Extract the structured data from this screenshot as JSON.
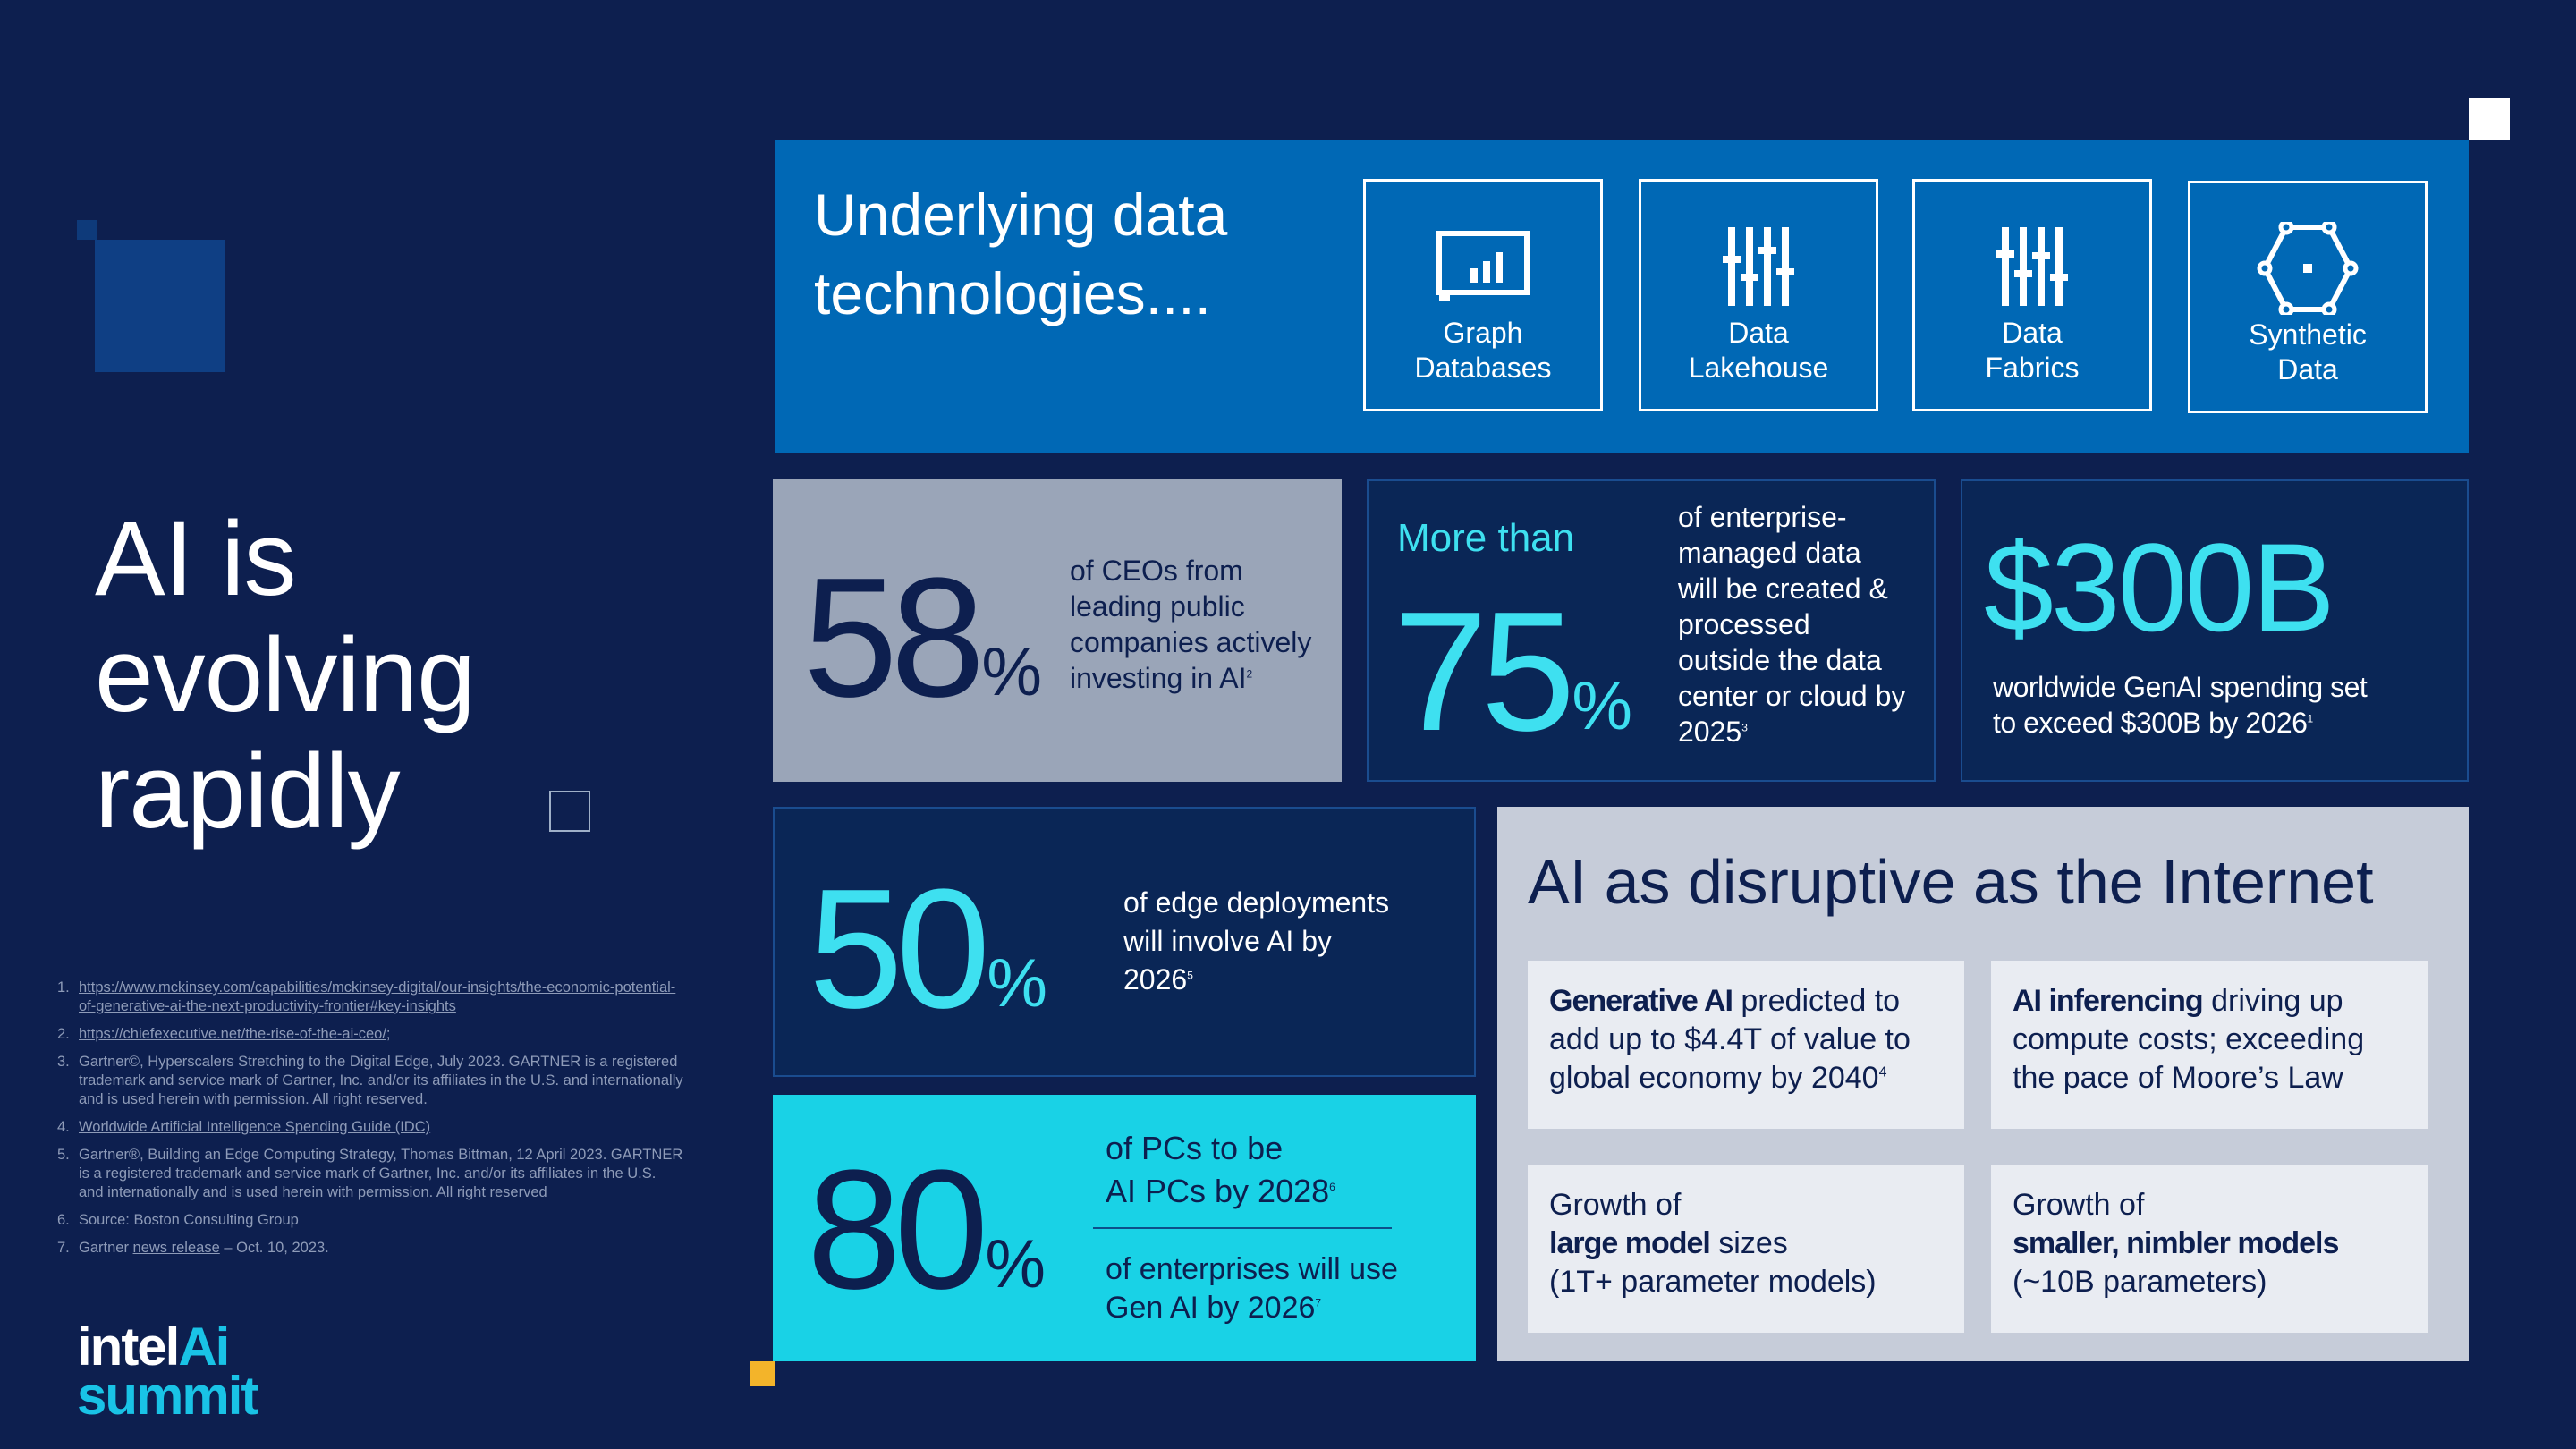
{
  "title": {
    "line1": "AI is",
    "line2": "evolving",
    "line3": "rapidly"
  },
  "tech": {
    "title_line1": "Underlying data",
    "title_line2": "technologies....",
    "cards": [
      {
        "label1": "Graph",
        "label2": "Databases",
        "icon": "graph-database-icon"
      },
      {
        "label1": "Data",
        "label2": "Lakehouse",
        "icon": "data-lakehouse-icon"
      },
      {
        "label1": "Data",
        "label2": "Fabrics",
        "icon": "data-fabrics-icon"
      },
      {
        "label1": "Synthetic",
        "label2": "Data",
        "icon": "synthetic-data-icon"
      }
    ]
  },
  "stats": {
    "ceo": {
      "value": "58",
      "unit": "%",
      "text1": "of CEOs from",
      "text2": "leading public",
      "text3": "companies actively",
      "text4": "investing in AI",
      "ref": "2"
    },
    "enterprise": {
      "prefix": "More than",
      "value": "75",
      "unit": "%",
      "text1": "of enterprise-",
      "text2": "managed data",
      "text3": "will be created &",
      "text4": "processed",
      "text5": "outside the data",
      "text6": "center or cloud by",
      "text7": "2025",
      "ref": "3"
    },
    "spending": {
      "value": "$300B",
      "text1": "worldwide GenAI spending set",
      "text2": "to exceed $300B by 2026",
      "ref": "1"
    },
    "edge": {
      "value": "50",
      "unit": "%",
      "text1": "of edge deployments",
      "text2": "will involve AI by",
      "text3": "2026",
      "ref": "5"
    },
    "pcs": {
      "value": "80",
      "unit": "%",
      "a_text1": "of PCs to be",
      "a_text2": "AI PCs by 2028",
      "a_ref": "6",
      "b_text1": "of enterprises will use",
      "b_text2": "Gen AI by 2026",
      "b_ref": "7"
    }
  },
  "disruptive": {
    "title": "AI as disruptive as the Internet",
    "box1": {
      "bold": "Generative AI",
      "rest1": " predicted to",
      "line2": "add up to $4.4T of value to",
      "line3": "global economy by 2040",
      "ref": "4"
    },
    "box2": {
      "bold": "AI inferencing",
      "rest1": " driving up",
      "line2": "compute costs; exceeding",
      "line3": "the pace of Moore’s Law"
    },
    "box3": {
      "line1": "Growth of",
      "bold": "large model",
      "rest2": " sizes",
      "line3": "(1T+ parameter models)"
    },
    "box4": {
      "line1": "Growth of",
      "bold": "smaller, nimbler models",
      "line3": "(~10B parameters)"
    }
  },
  "footnotes": [
    {
      "num": "1.",
      "text": "https://www.mckinsey.com/capabilities/mckinsey-digital/our-insights/the-economic-potential-of-generative-ai-the-next-productivity-frontier#key-insights"
    },
    {
      "num": "2.",
      "text": "https://chiefexecutive.net/the-rise-of-the-ai-ceo/;"
    },
    {
      "num": "3.",
      "text": "Gartner©, Hyperscalers Stretching  to the Digital Edge, July 2023.  GARTNER is a registered trademark  and service mark of Gartner, Inc. and/or its affiliates in the U.S. and internationally and is used herein with permission. All right reserved."
    },
    {
      "num": "4.",
      "text": "Worldwide Artificial Intelligence Spending Guide (IDC)"
    },
    {
      "num": "5.",
      "text": "Gartner®, Building an Edge Computing Strategy, Thomas Bittman, 12 April 2023. GARTNER is a registered trademark  and service mark of Gartner, Inc. and/or its affiliates in the U.S. and internationally and is used herein with permission. All right reserved"
    },
    {
      "num": "6.",
      "text": "Source: Boston Consulting  Group"
    },
    {
      "num": "7.",
      "text_a": "Gartner ",
      "link": "news release",
      "text_b": " – Oct. 10, 2023."
    }
  ],
  "logo": {
    "word1": "intel",
    "word2": "Ai",
    "word3": "summit"
  },
  "colors": {
    "background": "#0d1f4f",
    "intel_blue": "#0068b5",
    "cyan": "#19d2e6",
    "cyan_text": "#3ee0f0",
    "gray_card": "#9aa5b8",
    "light_panel": "#c6ccd9",
    "accent_yellow": "#f3b42a"
  }
}
